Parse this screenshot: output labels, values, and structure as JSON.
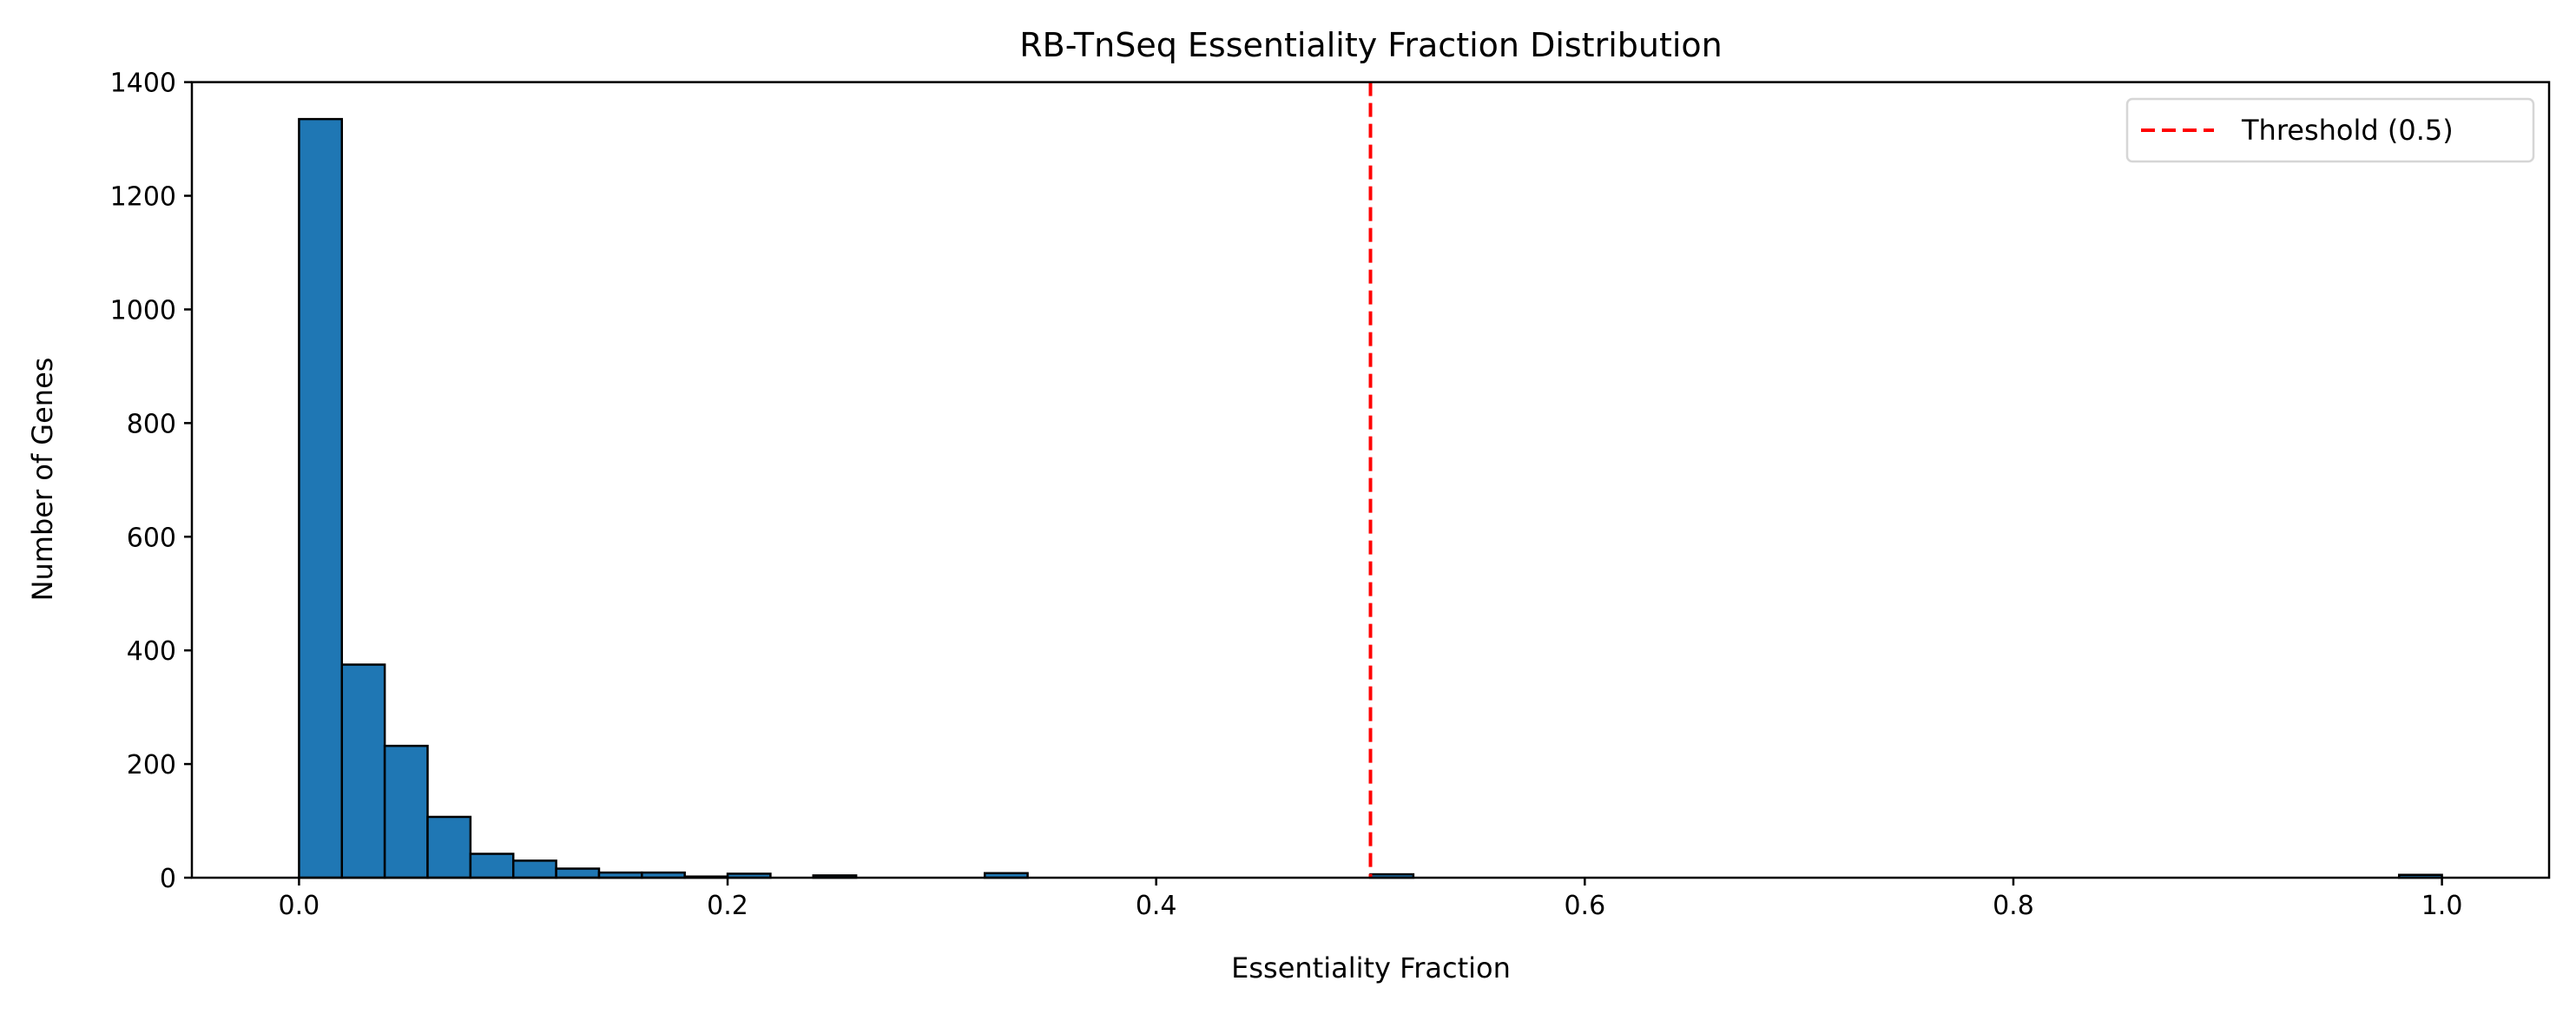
{
  "chart_data": {
    "type": "bar",
    "subtype": "histogram",
    "title": "RB-TnSeq Essentiality Fraction Distribution",
    "xlabel": "Essentiality Fraction",
    "ylabel": "Number of Genes",
    "xlim": [
      -0.05,
      1.05
    ],
    "ylim": [
      0,
      1400
    ],
    "bin_start": 0.0,
    "bin_width": 0.02,
    "counts": [
      1335,
      375,
      232,
      107,
      42,
      30,
      16,
      9,
      9,
      2,
      7,
      0,
      4,
      0,
      0,
      0,
      8,
      0,
      0,
      0,
      0,
      0,
      0,
      0,
      0,
      6,
      0,
      0,
      0,
      0,
      0,
      0,
      0,
      0,
      0,
      0,
      0,
      0,
      0,
      0,
      0,
      0,
      0,
      0,
      0,
      0,
      0,
      0,
      0,
      5
    ],
    "xticks": [
      "0.0",
      "0.2",
      "0.4",
      "0.6",
      "0.8",
      "1.0"
    ],
    "xtick_values": [
      0.0,
      0.2,
      0.4,
      0.6,
      0.8,
      1.0
    ],
    "yticks": [
      "0",
      "200",
      "400",
      "600",
      "800",
      "1000",
      "1200",
      "1400"
    ],
    "ytick_values": [
      0,
      200,
      400,
      600,
      800,
      1000,
      1200,
      1400
    ],
    "bar_color": "#1f77b4",
    "bar_edge_color": "#000000",
    "threshold": {
      "value": 0.5,
      "label": "Threshold (0.5)",
      "color": "#ff0000",
      "style": "dashed"
    },
    "legend": {
      "position": "top-right",
      "entries": [
        "Threshold (0.5)"
      ]
    },
    "grid": false
  }
}
